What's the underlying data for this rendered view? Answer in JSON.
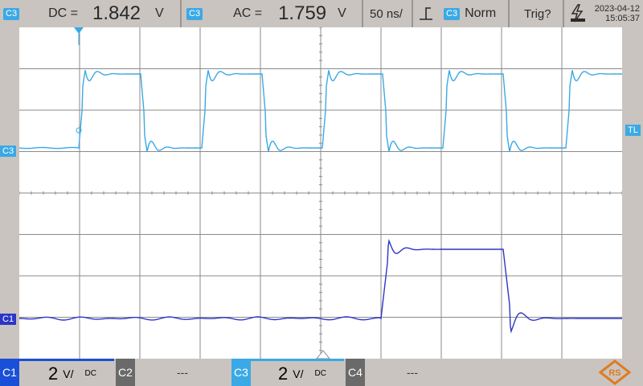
{
  "topbar": {
    "meas1": {
      "channel": "C3",
      "label": "DC =",
      "value": "1.842",
      "unit": "V"
    },
    "meas2": {
      "channel": "C3",
      "label": "AC =",
      "value": "1.759",
      "unit": "V"
    },
    "timebase": "50 ns/",
    "trigger_channel": "C3",
    "trigger_mode": "Norm",
    "trig_status": "Trig?",
    "date": "2023-04-12",
    "time": "15:05:37"
  },
  "markers": {
    "c3_left": "C3",
    "c1_left": "C1",
    "trigger_level": "TL"
  },
  "bottombar": {
    "ch1": {
      "label": "C1",
      "scale": "2",
      "unit": "V/",
      "coupling": "DC",
      "color": "#1a4fd8"
    },
    "ch2": {
      "label": "C2",
      "value": "---"
    },
    "ch3": {
      "label": "C3",
      "scale": "2",
      "unit": "V/",
      "coupling": "DC",
      "color": "#3aa9e6"
    },
    "ch4": {
      "label": "C4",
      "value": "---"
    }
  },
  "colors": {
    "c1": "#2c35c9",
    "c3": "#3aa9e6",
    "grid": "#8a8a8a",
    "bar": "#c9c4bf"
  },
  "icons": [
    "trigger-edge-icon",
    "usb-power-icon",
    "rs-logo-icon"
  ]
}
